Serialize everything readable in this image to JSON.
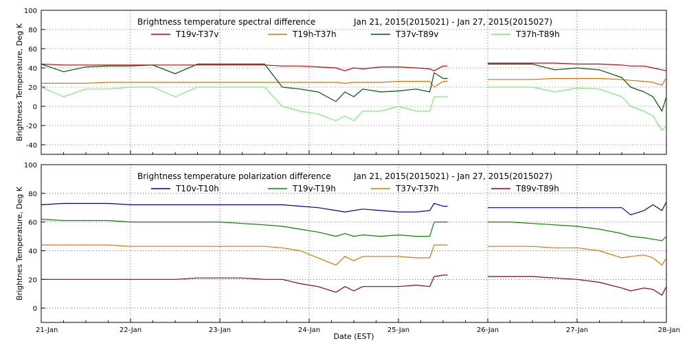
{
  "chart_data": [
    {
      "type": "line",
      "title": "Brightness temperature spectral difference",
      "date_range": "Jan 21, 2015(2015021) - Jan 27, 2015(2015027)",
      "ylabel": "Brightness Temperature, Deg K",
      "xlabel": "",
      "ylim": [
        -50,
        100
      ],
      "yticks": [
        -40,
        -20,
        0,
        20,
        40,
        60,
        80,
        100
      ],
      "xlim": [
        21,
        28
      ],
      "grid": true,
      "legend_position": "top",
      "x": [
        21.0,
        21.25,
        21.5,
        21.75,
        22.0,
        22.25,
        22.5,
        22.75,
        23.0,
        23.25,
        23.5,
        23.7,
        23.9,
        24.1,
        24.3,
        24.4,
        24.5,
        24.6,
        24.8,
        25.0,
        25.2,
        25.35,
        25.4,
        25.5,
        25.55,
        25.85,
        26.0,
        26.25,
        26.5,
        26.75,
        27.0,
        27.25,
        27.5,
        27.6,
        27.75,
        27.85,
        27.95,
        28.0
      ],
      "series": [
        {
          "name": "T19v-T37v",
          "color": "#cc0000",
          "values": [
            44,
            43,
            43,
            43,
            43,
            43,
            43,
            43,
            43,
            43,
            43,
            42,
            42,
            41,
            40,
            37,
            40,
            39,
            41,
            41,
            40,
            39,
            37,
            42,
            42,
            null,
            45,
            45,
            45,
            45,
            44,
            44,
            43,
            42,
            42,
            40,
            38,
            37
          ]
        },
        {
          "name": "T19h-T37h",
          "color": "#e07000",
          "values": [
            24,
            24,
            24,
            25,
            25,
            25,
            25,
            25,
            25,
            25,
            25,
            25,
            25,
            25,
            25,
            24,
            25,
            25,
            25,
            26,
            26,
            26,
            20,
            26,
            26,
            null,
            28,
            28,
            28,
            29,
            29,
            29,
            28,
            27,
            26,
            25,
            22,
            30
          ]
        },
        {
          "name": "T37v-T89v",
          "color": "#005500",
          "values": [
            44,
            36,
            41,
            42,
            42,
            43,
            34,
            44,
            44,
            44,
            44,
            20,
            18,
            15,
            5,
            15,
            10,
            18,
            15,
            16,
            18,
            15,
            35,
            29,
            29,
            null,
            44,
            44,
            44,
            38,
            40,
            38,
            30,
            20,
            15,
            10,
            -5,
            10
          ]
        },
        {
          "name": "T37h-T89h",
          "color": "#77ee77",
          "values": [
            20,
            10,
            18,
            18,
            20,
            20,
            10,
            20,
            20,
            20,
            20,
            0,
            -5,
            -8,
            -15,
            -10,
            -15,
            -5,
            -5,
            0,
            -5,
            -5,
            10,
            10,
            10,
            null,
            20,
            20,
            20,
            15,
            19,
            18,
            10,
            0,
            -5,
            -10,
            -25,
            -20
          ]
        }
      ]
    },
    {
      "type": "line",
      "title": "Brightness temperature polarization difference",
      "date_range": "Jan 21, 2015(2015021) - Jan 27, 2015(2015027)",
      "ylabel": "Brightnes Temperature, Deg K",
      "xlabel": "Date (EST)",
      "ylim": [
        -10,
        100
      ],
      "yticks": [
        0,
        20,
        40,
        60,
        80,
        100
      ],
      "xlim": [
        21,
        28
      ],
      "grid": true,
      "legend_position": "top",
      "x": [
        21.0,
        21.25,
        21.5,
        21.75,
        22.0,
        22.25,
        22.5,
        22.75,
        23.0,
        23.25,
        23.5,
        23.7,
        23.9,
        24.1,
        24.3,
        24.4,
        24.5,
        24.6,
        24.8,
        25.0,
        25.2,
        25.35,
        25.4,
        25.5,
        25.55,
        25.85,
        26.0,
        26.25,
        26.5,
        26.75,
        27.0,
        27.25,
        27.5,
        27.6,
        27.75,
        27.85,
        27.95,
        28.0
      ],
      "series": [
        {
          "name": "T10v-T10h",
          "color": "#000099",
          "values": [
            72,
            73,
            73,
            73,
            72,
            72,
            72,
            72,
            72,
            72,
            72,
            72,
            71,
            70,
            68,
            67,
            68,
            69,
            68,
            67,
            67,
            68,
            73,
            71,
            71,
            null,
            70,
            70,
            70,
            70,
            70,
            70,
            70,
            65,
            68,
            72,
            68,
            74
          ]
        },
        {
          "name": "T19v-T19h",
          "color": "#008800",
          "values": [
            62,
            61,
            61,
            61,
            60,
            60,
            60,
            60,
            60,
            59,
            58,
            57,
            55,
            53,
            50,
            52,
            50,
            51,
            50,
            51,
            50,
            50,
            60,
            60,
            60,
            null,
            60,
            60,
            59,
            58,
            57,
            55,
            52,
            50,
            49,
            48,
            47,
            50
          ]
        },
        {
          "name": "T37v-T37h",
          "color": "#e07000",
          "values": [
            44,
            44,
            44,
            44,
            43,
            43,
            43,
            43,
            43,
            43,
            43,
            42,
            40,
            35,
            30,
            36,
            33,
            36,
            36,
            36,
            35,
            35,
            44,
            44,
            44,
            null,
            43,
            43,
            43,
            42,
            42,
            40,
            35,
            36,
            37,
            35,
            30,
            35
          ]
        },
        {
          "name": "T89v-T89h",
          "color": "#990000",
          "values": [
            20,
            20,
            20,
            20,
            20,
            20,
            20,
            21,
            21,
            21,
            20,
            20,
            17,
            15,
            11,
            15,
            12,
            15,
            15,
            15,
            16,
            15,
            22,
            23,
            23,
            null,
            22,
            22,
            22,
            21,
            20,
            18,
            14,
            12,
            14,
            13,
            9,
            15
          ]
        }
      ]
    }
  ],
  "x_tick_labels": [
    "21-Jan",
    "22-Jan",
    "23-Jan",
    "24-Jan",
    "25-Jan",
    "26-Jan",
    "27-Jan",
    "28-Jan"
  ]
}
